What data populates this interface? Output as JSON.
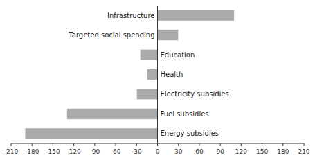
{
  "chart_data": {
    "type": "bar",
    "orientation": "horizontal",
    "categories": [
      "Energy subsidies",
      "Fuel subsidies",
      "Electricity subsidies",
      "Health",
      "Education",
      "Targeted social spending",
      "Infrastructure"
    ],
    "values": [
      -190,
      -130,
      -30,
      -15,
      -25,
      30,
      110
    ],
    "color": "#aaaaaa",
    "xlim": [
      -210,
      210
    ],
    "xticks": [
      -210,
      -180,
      -150,
      -120,
      -90,
      -60,
      -30,
      0,
      30,
      60,
      90,
      120,
      150,
      180,
      210
    ]
  }
}
